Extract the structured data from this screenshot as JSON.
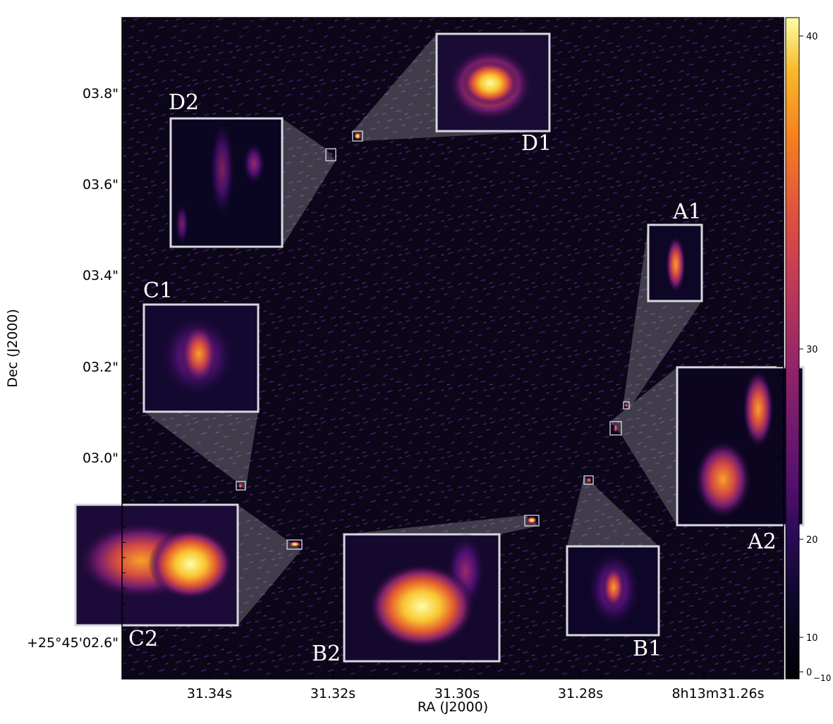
{
  "axes": {
    "xlabel": "RA (J2000)",
    "ylabel": "Dec (J2000)",
    "x_ticks": [
      "31.34s",
      "31.32s",
      "31.30s",
      "31.28s",
      "8h13m31.26s"
    ],
    "y_ticks": [
      "03.8\"",
      "03.6\"",
      "03.4\"",
      "03.2\"",
      "03.0\"",
      "+25°45'02.6\""
    ]
  },
  "colorbar": {
    "colormap": "inferno",
    "ticks": [
      "40",
      "30",
      "20",
      "10",
      "0",
      "−10"
    ]
  },
  "insets": [
    {
      "label": "D1"
    },
    {
      "label": "D2"
    },
    {
      "label": "A1"
    },
    {
      "label": "C1"
    },
    {
      "label": "A2"
    },
    {
      "label": "C2"
    },
    {
      "label": "B2"
    },
    {
      "label": "B1"
    }
  ],
  "colors": {
    "background": "#0b0618",
    "frame": "#000000",
    "inset_border": "#d8d8e0"
  }
}
